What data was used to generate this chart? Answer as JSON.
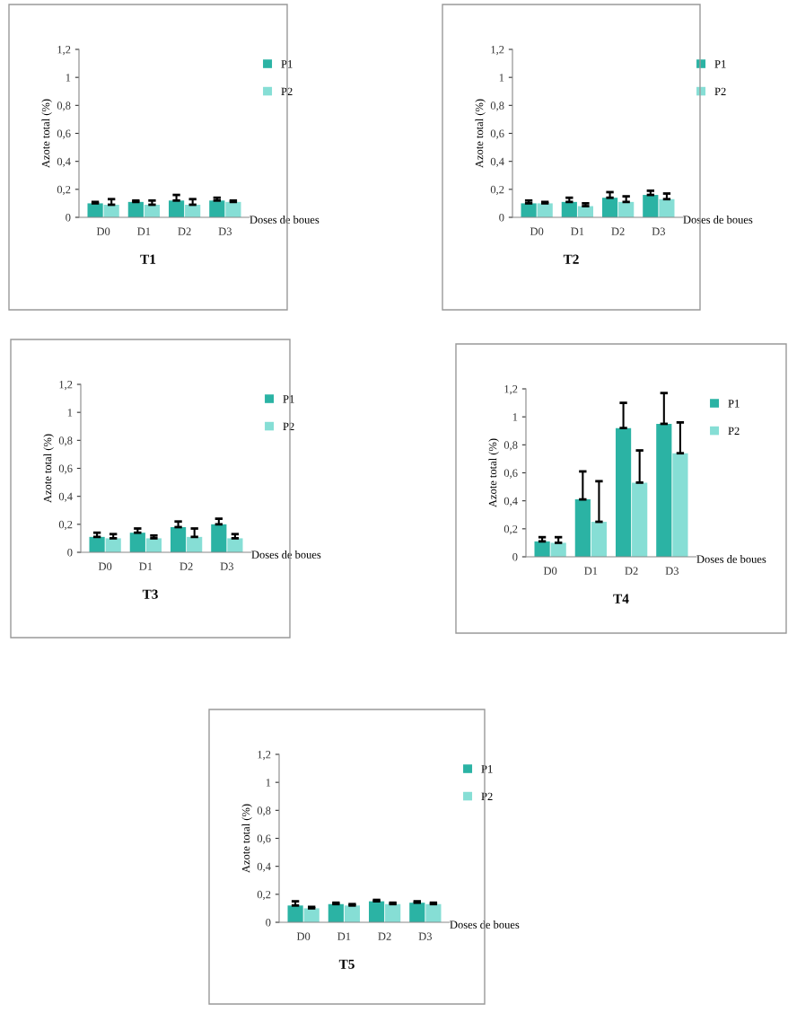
{
  "chart_data": [
    {
      "type": "bar",
      "title": "T1",
      "xlabel": "Doses de boues",
      "ylabel": "Azote total (%)",
      "categories": [
        "D0",
        "D1",
        "D2",
        "D3"
      ],
      "ylim": [
        0,
        1.2
      ],
      "yticks": [
        0,
        {
          "value": 0.2,
          "label": "0,2"
        },
        {
          "value": 0.4,
          "label": "0,4"
        },
        {
          "value": 0.6,
          "label": "0,6"
        },
        {
          "value": 0.8,
          "label": "0,8"
        },
        1,
        {
          "value": 1.2,
          "label": "1,2"
        }
      ],
      "legend": "right",
      "grid": false,
      "series": [
        {
          "name": "P1",
          "color": "#2bb3a4",
          "values": [
            0.1,
            0.11,
            0.12,
            0.12
          ],
          "errors": [
            [
              0.1,
              0.11
            ],
            [
              0.11,
              0.12
            ],
            [
              0.12,
              0.16
            ],
            [
              0.12,
              0.14
            ]
          ]
        },
        {
          "name": "P2",
          "color": "#86ded5",
          "values": [
            0.09,
            0.09,
            0.09,
            0.11
          ],
          "errors": [
            [
              0.09,
              0.13
            ],
            [
              0.09,
              0.12
            ],
            [
              0.09,
              0.13
            ],
            [
              0.11,
              0.12
            ]
          ]
        }
      ]
    },
    {
      "type": "bar",
      "title": "T2",
      "xlabel": "Doses de boues",
      "ylabel": "Azote total (%)",
      "categories": [
        "D0",
        "D1",
        "D2",
        "D3"
      ],
      "ylim": [
        0,
        1.2
      ],
      "yticks": [
        0,
        {
          "value": 0.2,
          "label": "0,2"
        },
        {
          "value": 0.4,
          "label": "0,4"
        },
        {
          "value": 0.6,
          "label": "0,6"
        },
        {
          "value": 0.8,
          "label": "0,8"
        },
        1,
        {
          "value": 1.2,
          "label": "1,2"
        }
      ],
      "legend": "right",
      "grid": false,
      "series": [
        {
          "name": "P1",
          "color": "#2bb3a4",
          "values": [
            0.1,
            0.11,
            0.14,
            0.16
          ],
          "errors": [
            [
              0.1,
              0.12
            ],
            [
              0.11,
              0.14
            ],
            [
              0.14,
              0.18
            ],
            [
              0.16,
              0.19
            ]
          ]
        },
        {
          "name": "P2",
          "color": "#86ded5",
          "values": [
            0.1,
            0.08,
            0.11,
            0.13
          ],
          "errors": [
            [
              0.1,
              0.11
            ],
            [
              0.08,
              0.1
            ],
            [
              0.11,
              0.15
            ],
            [
              0.13,
              0.17
            ]
          ]
        }
      ]
    },
    {
      "type": "bar",
      "title": "T3",
      "xlabel": "Doses de boues",
      "ylabel": "Azote total (%)",
      "categories": [
        "D0",
        "D1",
        "D2",
        "D3"
      ],
      "ylim": [
        0,
        1.2
      ],
      "yticks": [
        0,
        {
          "value": 0.2,
          "label": "0,2"
        },
        {
          "value": 0.4,
          "label": "0,4"
        },
        {
          "value": 0.6,
          "label": "0,6"
        },
        {
          "value": 0.8,
          "label": "0,8"
        },
        1,
        {
          "value": 1.2,
          "label": "1,2"
        }
      ],
      "legend": "right",
      "grid": false,
      "series": [
        {
          "name": "P1",
          "color": "#2bb3a4",
          "values": [
            0.11,
            0.14,
            0.18,
            0.2
          ],
          "errors": [
            [
              0.11,
              0.14
            ],
            [
              0.14,
              0.17
            ],
            [
              0.18,
              0.22
            ],
            [
              0.2,
              0.24
            ]
          ]
        },
        {
          "name": "P2",
          "color": "#86ded5",
          "values": [
            0.1,
            0.1,
            0.11,
            0.1
          ],
          "errors": [
            [
              0.1,
              0.13
            ],
            [
              0.1,
              0.12
            ],
            [
              0.11,
              0.17
            ],
            [
              0.1,
              0.13
            ]
          ]
        }
      ]
    },
    {
      "type": "bar",
      "title": "T4",
      "xlabel": "Doses de boues",
      "ylabel": "Azote total (%)",
      "categories": [
        "D0",
        "D1",
        "D2",
        "D3"
      ],
      "ylim": [
        0,
        1.2
      ],
      "yticks": [
        0,
        {
          "value": 0.2,
          "label": "0,2"
        },
        {
          "value": 0.4,
          "label": "0,4"
        },
        {
          "value": 0.6,
          "label": "0,6"
        },
        {
          "value": 0.8,
          "label": "0,8"
        },
        1,
        {
          "value": 1.2,
          "label": "1,2"
        }
      ],
      "legend": "right",
      "grid": false,
      "series": [
        {
          "name": "P1",
          "color": "#2bb3a4",
          "values": [
            0.11,
            0.41,
            0.92,
            0.95
          ],
          "errors": [
            [
              0.11,
              0.14
            ],
            [
              0.41,
              0.61
            ],
            [
              0.92,
              1.1
            ],
            [
              0.95,
              1.17
            ]
          ]
        },
        {
          "name": "P2",
          "color": "#86ded5",
          "values": [
            0.1,
            0.25,
            0.53,
            0.74
          ],
          "errors": [
            [
              0.1,
              0.14
            ],
            [
              0.25,
              0.54
            ],
            [
              0.53,
              0.76
            ],
            [
              0.74,
              0.96
            ]
          ]
        }
      ]
    },
    {
      "type": "bar",
      "title": "T5",
      "xlabel": "Doses de boues",
      "ylabel": "Azote total (%)",
      "categories": [
        "D0",
        "D1",
        "D2",
        "D3"
      ],
      "ylim": [
        0,
        1.2
      ],
      "yticks": [
        0,
        {
          "value": 0.2,
          "label": "0,2"
        },
        {
          "value": 0.4,
          "label": "0,4"
        },
        {
          "value": 0.6,
          "label": "0,6"
        },
        {
          "value": 0.8,
          "label": "0,8"
        },
        1,
        {
          "value": 1.2,
          "label": "1,2"
        }
      ],
      "legend": "right",
      "grid": false,
      "series": [
        {
          "name": "P1",
          "color": "#2bb3a4",
          "values": [
            0.12,
            0.13,
            0.15,
            0.14
          ],
          "errors": [
            [
              0.12,
              0.15
            ],
            [
              0.13,
              0.14
            ],
            [
              0.15,
              0.16
            ],
            [
              0.14,
              0.15
            ]
          ]
        },
        {
          "name": "P2",
          "color": "#86ded5",
          "values": [
            0.1,
            0.12,
            0.13,
            0.13
          ],
          "errors": [
            [
              0.1,
              0.11
            ],
            [
              0.12,
              0.13
            ],
            [
              0.13,
              0.14
            ],
            [
              0.13,
              0.14
            ]
          ]
        }
      ]
    }
  ]
}
